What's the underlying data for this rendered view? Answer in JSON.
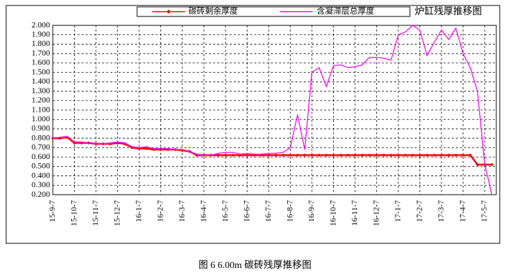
{
  "chart_data": {
    "type": "line",
    "title": "炉缸残厚推移图",
    "caption": "图 6   6.00m 碳砖残厚推移图",
    "categories": [
      "15-9-7",
      null,
      null,
      "15-10-7",
      null,
      null,
      "15-11-7",
      null,
      null,
      "15-12-7",
      null,
      null,
      "16-1-7",
      null,
      null,
      "16-2-7",
      null,
      null,
      "16-3-7",
      null,
      null,
      "16-4-7",
      null,
      null,
      "16-5-7",
      null,
      null,
      "16-6-7",
      null,
      null,
      "16-7-7",
      null,
      null,
      "16-8-7",
      null,
      null,
      "16-9-7",
      null,
      null,
      "16-10-7",
      null,
      null,
      "16-11-7",
      null,
      null,
      "16-12-7",
      null,
      null,
      "17-1-7",
      null,
      null,
      "17-2-7",
      null,
      null,
      "17-3-7",
      null,
      null,
      "17-4-7",
      null,
      null,
      "17-5-7",
      null
    ],
    "series": [
      {
        "name": "碳砖剩余厚度",
        "color": "#ff0000",
        "marker": true,
        "values": [
          0.8,
          0.8,
          0.81,
          0.75,
          0.75,
          0.75,
          0.74,
          0.74,
          0.74,
          0.75,
          0.74,
          0.7,
          0.69,
          0.69,
          0.68,
          0.68,
          0.68,
          0.68,
          0.67,
          0.66,
          0.62,
          0.62,
          0.62,
          0.62,
          0.62,
          0.62,
          0.62,
          0.62,
          0.62,
          0.62,
          0.62,
          0.62,
          0.62,
          0.62,
          0.62,
          0.62,
          0.62,
          0.62,
          0.62,
          0.62,
          0.62,
          0.62,
          0.62,
          0.62,
          0.62,
          0.62,
          0.62,
          0.62,
          0.62,
          0.62,
          0.62,
          0.62,
          0.62,
          0.62,
          0.62,
          0.62,
          0.62,
          0.62,
          0.62,
          0.52,
          0.52,
          0.52
        ]
      },
      {
        "name": "含凝滞层总厚度",
        "color": "#ff00ff",
        "marker": false,
        "values": [
          0.8,
          0.81,
          0.82,
          0.76,
          0.76,
          0.75,
          0.74,
          0.74,
          0.75,
          0.76,
          0.75,
          0.71,
          0.7,
          0.71,
          0.69,
          0.69,
          0.69,
          0.68,
          0.68,
          0.66,
          0.63,
          0.62,
          0.62,
          0.64,
          0.65,
          0.65,
          0.63,
          0.64,
          0.63,
          0.63,
          0.64,
          0.64,
          0.65,
          0.7,
          1.05,
          0.68,
          1.5,
          1.55,
          1.35,
          1.57,
          1.58,
          1.55,
          1.56,
          1.58,
          1.66,
          1.66,
          1.65,
          1.63,
          1.9,
          1.93,
          2.0,
          1.95,
          1.68,
          1.82,
          1.95,
          1.85,
          1.97,
          1.7,
          1.55,
          1.3,
          0.53,
          0.2
        ]
      }
    ],
    "ylim": [
      0.2,
      2.0
    ],
    "yticks": [
      {
        "value": 2.0,
        "label": "2.000"
      },
      {
        "value": 1.9,
        "label": "1.900"
      },
      {
        "value": 1.8,
        "label": "1.800"
      },
      {
        "value": 1.7,
        "label": "1.700"
      },
      {
        "value": 1.6,
        "label": "1.600"
      },
      {
        "value": 1.5,
        "label": "1.500"
      },
      {
        "value": 1.4,
        "label": "1.400"
      },
      {
        "value": 1.3,
        "label": "1.300"
      },
      {
        "value": 1.2,
        "label": "1.200"
      },
      {
        "value": 1.1,
        "label": "1.100"
      },
      {
        "value": 1.0,
        "label": "1.000"
      },
      {
        "value": 0.9,
        "label": "0.900"
      },
      {
        "value": 0.8,
        "label": "0.800"
      },
      {
        "value": 0.7,
        "label": "0.700"
      },
      {
        "value": 0.6,
        "label": "0.600"
      },
      {
        "value": 0.5,
        "label": "0.500"
      },
      {
        "value": 0.4,
        "label": "0.400"
      },
      {
        "value": 0.3,
        "label": "0.300"
      },
      {
        "value": 0.2,
        "label": "0.200"
      }
    ],
    "grid": true
  }
}
